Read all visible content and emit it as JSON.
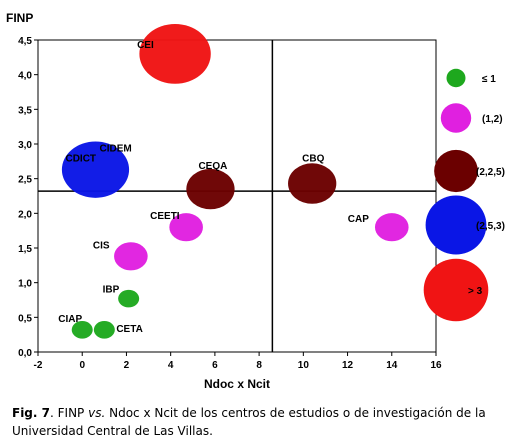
{
  "chart_data": {
    "type": "scatter",
    "subtype": "bubble",
    "ylabel": "FINP",
    "xlabel": "Ndoc x Ncit",
    "xlim": [
      -2,
      16
    ],
    "ylim": [
      0,
      4.5
    ],
    "xticks": [
      "-2",
      "0",
      "2",
      "4",
      "6",
      "8",
      "10",
      "12",
      "14",
      "16"
    ],
    "yticks": [
      "0,0",
      "0,5",
      "1,0",
      "1,5",
      "2,0",
      "2,5",
      "3,0",
      "3,5",
      "4,0",
      "4,5"
    ],
    "reference_lines": {
      "x": 8.6,
      "y": 2.32
    },
    "grid": false,
    "points": [
      {
        "label": "CEI",
        "x": 4.2,
        "y": 4.3,
        "size_class": 5
      },
      {
        "label": "CIDEM",
        "x": 0.6,
        "y": 2.63,
        "size_class": 4
      },
      {
        "label": "CDICT",
        "x": 0.6,
        "y": 2.63,
        "size_class": 4
      },
      {
        "label": "CEQA",
        "x": 5.8,
        "y": 2.35,
        "size_class": 3
      },
      {
        "label": "CBQ",
        "x": 10.4,
        "y": 2.43,
        "size_class": 3
      },
      {
        "label": "CAP",
        "x": 14.0,
        "y": 1.8,
        "size_class": 2
      },
      {
        "label": "CEETI",
        "x": 4.7,
        "y": 1.8,
        "size_class": 2
      },
      {
        "label": "CIS",
        "x": 2.2,
        "y": 1.38,
        "size_class": 2
      },
      {
        "label": "IBP",
        "x": 2.1,
        "y": 0.77,
        "size_class": 1
      },
      {
        "label": "CIAP",
        "x": 0.0,
        "y": 0.32,
        "size_class": 1
      },
      {
        "label": "CETA",
        "x": 1.0,
        "y": 0.32,
        "size_class": 1
      }
    ],
    "legend": {
      "placement": "right",
      "entries": [
        {
          "label": "≤ 1",
          "size_class": 1,
          "color": "#1ea81e"
        },
        {
          "label": "(1,2)",
          "size_class": 2,
          "color": "#e020e0"
        },
        {
          "label": "(2,2,5)",
          "size_class": 3,
          "color": "#6b0000"
        },
        {
          "label": "(2,5,3)",
          "size_class": 4,
          "color": "#0a16e6"
        },
        {
          "label": "> 3",
          "size_class": 5,
          "color": "#f01414"
        }
      ]
    }
  },
  "caption": {
    "fig_label": "Fig. 7",
    "text_1": ". FINP ",
    "text_italic": "vs.",
    "text_2": " Ndoc x Ncit de los centros de estudios o de investigación de la Universidad Central de Las Villas."
  }
}
